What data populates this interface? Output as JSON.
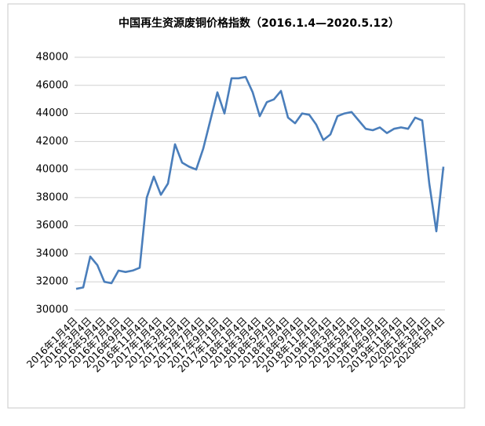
{
  "chart_data": {
    "type": "line",
    "title": "中国再生资源废铜价格指数（2016.1.4—2020.5.12）",
    "categories": [
      "2016年1月4日",
      null,
      "2016年3月4日",
      null,
      "2016年5月4日",
      null,
      "2016年7月4日",
      null,
      "2016年9月4日",
      null,
      "2016年11月4日",
      null,
      "2017年1月4日",
      null,
      "2017年3月4日",
      null,
      "2017年5月4日",
      null,
      "2017年7月4日",
      null,
      "2017年9月4日",
      null,
      "2017年11月4日",
      null,
      "2018年1月4日",
      null,
      "2018年3月4日",
      null,
      "2018年5月4日",
      null,
      "2018年7月4日",
      null,
      "2018年9月4日",
      null,
      "2018年11月4日",
      null,
      "2019年1月4日",
      null,
      "2019年3月4日",
      null,
      "2019年5月4日",
      null,
      "2019年7月4日",
      null,
      "2019年9月4日",
      null,
      "2019年11月4日",
      null,
      "2020年1月4日",
      null,
      "2020年3月4日",
      null,
      "2020年5月4日"
    ],
    "series": [
      {
        "name": "废铜价格指数",
        "color": "#4a7ebb",
        "values": [
          31500,
          31600,
          33800,
          33200,
          32000,
          31900,
          32800,
          32700,
          32800,
          33000,
          38000,
          39500,
          38200,
          39000,
          41800,
          40500,
          40200,
          40000,
          41500,
          43500,
          45500,
          44000,
          46500,
          46500,
          46600,
          45500,
          43800,
          44800,
          45000,
          45600,
          43700,
          43300,
          44000,
          43900,
          43200,
          42100,
          42500,
          43800,
          44000,
          44100,
          43500,
          42900,
          42800,
          43000,
          42600,
          42900,
          43000,
          42900,
          43700,
          43500,
          39000,
          35600,
          40200
        ]
      }
    ],
    "ylim": [
      30000,
      48000
    ],
    "yticks": [
      30000,
      32000,
      34000,
      36000,
      38000,
      40000,
      42000,
      44000,
      46000,
      48000
    ],
    "grid": true
  }
}
